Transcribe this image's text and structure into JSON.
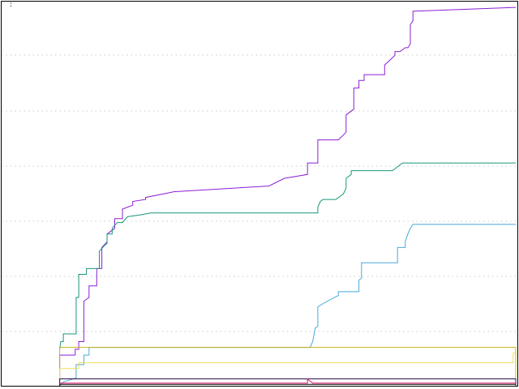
{
  "chart_data": {
    "type": "line",
    "title": "",
    "xlabel": "",
    "ylabel": "",
    "xlim": [
      0,
      100
    ],
    "ylim": [
      0,
      100
    ],
    "grid": {
      "y": true,
      "x": false,
      "style": "dotted"
    },
    "legend": "none",
    "y_tick_labels": [
      ":"
    ],
    "series": [
      {
        "color": "#8b1fd6",
        "x": [
          11.3,
          11.3,
          14.3,
          14.3,
          15.0,
          15.0,
          16.0,
          16.0,
          17.0,
          17.0,
          18.5,
          18.5,
          19.5,
          19.5,
          20.5,
          20.5,
          22.0,
          22.0,
          23.5,
          23.5,
          25.5,
          25.5,
          28.0,
          28.0,
          33.5,
          52.0,
          55.0,
          59.5,
          59.5,
          61.5,
          61.5,
          65.5,
          67.0,
          67.0,
          68.5,
          68.5,
          69.5,
          69.5,
          70.5,
          70.5,
          74.5,
          74.5,
          76.5,
          76.5,
          77.5,
          78.5,
          79.0,
          79.5,
          79.5,
          80.0,
          80.0,
          100.0
        ],
        "values": [
          1.2,
          8.0,
          8.0,
          9.5,
          9.5,
          11.5,
          11.5,
          22.0,
          23.0,
          26.0,
          26.0,
          30.5,
          30.5,
          36.0,
          37.5,
          39.5,
          41.0,
          43.5,
          43.5,
          46.0,
          47.0,
          48.0,
          48.5,
          49.0,
          50.5,
          52.0,
          54.0,
          55.0,
          58.0,
          58.0,
          64.0,
          64.0,
          66.0,
          70.5,
          72.0,
          77.5,
          77.5,
          79.5,
          79.5,
          81.0,
          81.0,
          83.5,
          86.0,
          87.0,
          87.0,
          88.0,
          88.0,
          89.0,
          94.0,
          95.0,
          97.5,
          98.5
        ]
      },
      {
        "color": "#17967a",
        "x": [
          11.3,
          11.5,
          12.0,
          12.0,
          14.5,
          14.5,
          15.0,
          15.0,
          16.5,
          16.5,
          19.0,
          19.0,
          20.0,
          20.5,
          20.5,
          21.5,
          21.5,
          22.5,
          23.5,
          24.5,
          27.0,
          29.0,
          61.5,
          61.5,
          62.0,
          62.5,
          65.0,
          66.5,
          67.0,
          67.0,
          68.0,
          68.0,
          76.0,
          78.0,
          100.0
        ],
        "values": [
          9.5,
          11.5,
          11.5,
          13.5,
          13.5,
          23.0,
          23.0,
          29.0,
          29.0,
          30.5,
          30.5,
          35.0,
          36.5,
          37.0,
          39.5,
          39.5,
          41.0,
          42.5,
          42.5,
          44.0,
          44.5,
          45.0,
          45.0,
          46.5,
          48.0,
          48.5,
          48.5,
          50.0,
          51.5,
          54.0,
          55.0,
          56.0,
          56.0,
          58.0,
          58.0
        ]
      },
      {
        "color": "#4aa9d8",
        "x": [
          11.3,
          12.0,
          14.5,
          14.5,
          16.0,
          16.0,
          17.0,
          17.0,
          60.0,
          60.5,
          61.0,
          61.5,
          61.5,
          62.0,
          64.0,
          65.5,
          65.5,
          69.5,
          69.5,
          70.0,
          70.0,
          77.0,
          77.0,
          78.5,
          78.5,
          79.0,
          79.5,
          80.0,
          80.5,
          100.0
        ],
        "values": [
          0.0,
          1.0,
          2.0,
          5.5,
          5.5,
          8.0,
          8.0,
          10.0,
          10.0,
          11.5,
          15.0,
          15.5,
          20.5,
          21.0,
          22.5,
          23.5,
          24.5,
          24.5,
          27.5,
          28.0,
          32.0,
          32.0,
          36.0,
          36.0,
          37.5,
          39.5,
          41.0,
          42.0,
          42.0,
          42.0
        ]
      },
      {
        "color": "#c8b014",
        "x": [
          11.3,
          11.3,
          100.0,
          100.0
        ],
        "values": [
          0.0,
          10.0,
          10.0,
          0.0
        ]
      },
      {
        "color": "#ece05a",
        "x": [
          11.3,
          11.3,
          15.0,
          15.0,
          99.5,
          99.5,
          100.0
        ],
        "values": [
          0.0,
          4.5,
          4.5,
          6.0,
          6.0,
          8.5,
          8.5
        ]
      },
      {
        "color": "#2a1054",
        "x": [
          11.3,
          11.3,
          100.0,
          100.0
        ],
        "values": [
          0.0,
          1.8,
          1.8,
          0.0
        ]
      },
      {
        "color": "#e0106a",
        "x": [
          11.3,
          59.5,
          59.5,
          60.5,
          100.0
        ],
        "values": [
          0.7,
          0.7,
          1.7,
          0.7,
          0.7
        ]
      },
      {
        "color": "#000000",
        "x": [
          11.3,
          100.0
        ],
        "values": [
          0.35,
          0.35
        ]
      }
    ]
  }
}
